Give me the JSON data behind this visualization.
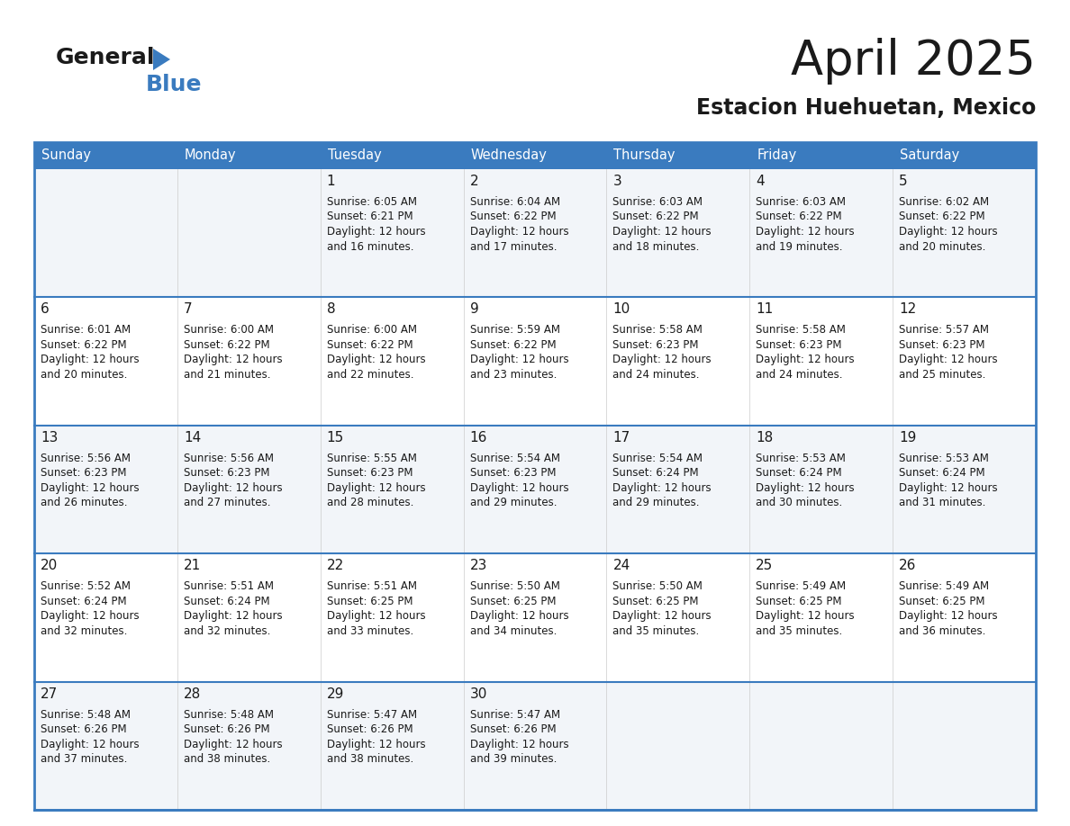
{
  "title": "April 2025",
  "subtitle": "Estacion Huehuetan, Mexico",
  "header_bg_color": "#3a7bbf",
  "header_text_color": "#ffffff",
  "text_color": "#1a1a1a",
  "cell_bg_even": "#f2f5f9",
  "cell_bg_odd": "#ffffff",
  "border_color": "#3a7bbf",
  "separator_color": "#3a7bbf",
  "col_sep_color": "#cccccc",
  "day_headers": [
    "Sunday",
    "Monday",
    "Tuesday",
    "Wednesday",
    "Thursday",
    "Friday",
    "Saturday"
  ],
  "weeks": [
    [
      {
        "day": "",
        "lines": []
      },
      {
        "day": "",
        "lines": []
      },
      {
        "day": "1",
        "lines": [
          "Sunrise: 6:05 AM",
          "Sunset: 6:21 PM",
          "Daylight: 12 hours",
          "and 16 minutes."
        ]
      },
      {
        "day": "2",
        "lines": [
          "Sunrise: 6:04 AM",
          "Sunset: 6:22 PM",
          "Daylight: 12 hours",
          "and 17 minutes."
        ]
      },
      {
        "day": "3",
        "lines": [
          "Sunrise: 6:03 AM",
          "Sunset: 6:22 PM",
          "Daylight: 12 hours",
          "and 18 minutes."
        ]
      },
      {
        "day": "4",
        "lines": [
          "Sunrise: 6:03 AM",
          "Sunset: 6:22 PM",
          "Daylight: 12 hours",
          "and 19 minutes."
        ]
      },
      {
        "day": "5",
        "lines": [
          "Sunrise: 6:02 AM",
          "Sunset: 6:22 PM",
          "Daylight: 12 hours",
          "and 20 minutes."
        ]
      }
    ],
    [
      {
        "day": "6",
        "lines": [
          "Sunrise: 6:01 AM",
          "Sunset: 6:22 PM",
          "Daylight: 12 hours",
          "and 20 minutes."
        ]
      },
      {
        "day": "7",
        "lines": [
          "Sunrise: 6:00 AM",
          "Sunset: 6:22 PM",
          "Daylight: 12 hours",
          "and 21 minutes."
        ]
      },
      {
        "day": "8",
        "lines": [
          "Sunrise: 6:00 AM",
          "Sunset: 6:22 PM",
          "Daylight: 12 hours",
          "and 22 minutes."
        ]
      },
      {
        "day": "9",
        "lines": [
          "Sunrise: 5:59 AM",
          "Sunset: 6:22 PM",
          "Daylight: 12 hours",
          "and 23 minutes."
        ]
      },
      {
        "day": "10",
        "lines": [
          "Sunrise: 5:58 AM",
          "Sunset: 6:23 PM",
          "Daylight: 12 hours",
          "and 24 minutes."
        ]
      },
      {
        "day": "11",
        "lines": [
          "Sunrise: 5:58 AM",
          "Sunset: 6:23 PM",
          "Daylight: 12 hours",
          "and 24 minutes."
        ]
      },
      {
        "day": "12",
        "lines": [
          "Sunrise: 5:57 AM",
          "Sunset: 6:23 PM",
          "Daylight: 12 hours",
          "and 25 minutes."
        ]
      }
    ],
    [
      {
        "day": "13",
        "lines": [
          "Sunrise: 5:56 AM",
          "Sunset: 6:23 PM",
          "Daylight: 12 hours",
          "and 26 minutes."
        ]
      },
      {
        "day": "14",
        "lines": [
          "Sunrise: 5:56 AM",
          "Sunset: 6:23 PM",
          "Daylight: 12 hours",
          "and 27 minutes."
        ]
      },
      {
        "day": "15",
        "lines": [
          "Sunrise: 5:55 AM",
          "Sunset: 6:23 PM",
          "Daylight: 12 hours",
          "and 28 minutes."
        ]
      },
      {
        "day": "16",
        "lines": [
          "Sunrise: 5:54 AM",
          "Sunset: 6:23 PM",
          "Daylight: 12 hours",
          "and 29 minutes."
        ]
      },
      {
        "day": "17",
        "lines": [
          "Sunrise: 5:54 AM",
          "Sunset: 6:24 PM",
          "Daylight: 12 hours",
          "and 29 minutes."
        ]
      },
      {
        "day": "18",
        "lines": [
          "Sunrise: 5:53 AM",
          "Sunset: 6:24 PM",
          "Daylight: 12 hours",
          "and 30 minutes."
        ]
      },
      {
        "day": "19",
        "lines": [
          "Sunrise: 5:53 AM",
          "Sunset: 6:24 PM",
          "Daylight: 12 hours",
          "and 31 minutes."
        ]
      }
    ],
    [
      {
        "day": "20",
        "lines": [
          "Sunrise: 5:52 AM",
          "Sunset: 6:24 PM",
          "Daylight: 12 hours",
          "and 32 minutes."
        ]
      },
      {
        "day": "21",
        "lines": [
          "Sunrise: 5:51 AM",
          "Sunset: 6:24 PM",
          "Daylight: 12 hours",
          "and 32 minutes."
        ]
      },
      {
        "day": "22",
        "lines": [
          "Sunrise: 5:51 AM",
          "Sunset: 6:25 PM",
          "Daylight: 12 hours",
          "and 33 minutes."
        ]
      },
      {
        "day": "23",
        "lines": [
          "Sunrise: 5:50 AM",
          "Sunset: 6:25 PM",
          "Daylight: 12 hours",
          "and 34 minutes."
        ]
      },
      {
        "day": "24",
        "lines": [
          "Sunrise: 5:50 AM",
          "Sunset: 6:25 PM",
          "Daylight: 12 hours",
          "and 35 minutes."
        ]
      },
      {
        "day": "25",
        "lines": [
          "Sunrise: 5:49 AM",
          "Sunset: 6:25 PM",
          "Daylight: 12 hours",
          "and 35 minutes."
        ]
      },
      {
        "day": "26",
        "lines": [
          "Sunrise: 5:49 AM",
          "Sunset: 6:25 PM",
          "Daylight: 12 hours",
          "and 36 minutes."
        ]
      }
    ],
    [
      {
        "day": "27",
        "lines": [
          "Sunrise: 5:48 AM",
          "Sunset: 6:26 PM",
          "Daylight: 12 hours",
          "and 37 minutes."
        ]
      },
      {
        "day": "28",
        "lines": [
          "Sunrise: 5:48 AM",
          "Sunset: 6:26 PM",
          "Daylight: 12 hours",
          "and 38 minutes."
        ]
      },
      {
        "day": "29",
        "lines": [
          "Sunrise: 5:47 AM",
          "Sunset: 6:26 PM",
          "Daylight: 12 hours",
          "and 38 minutes."
        ]
      },
      {
        "day": "30",
        "lines": [
          "Sunrise: 5:47 AM",
          "Sunset: 6:26 PM",
          "Daylight: 12 hours",
          "and 39 minutes."
        ]
      },
      {
        "day": "",
        "lines": []
      },
      {
        "day": "",
        "lines": []
      },
      {
        "day": "",
        "lines": []
      }
    ]
  ]
}
